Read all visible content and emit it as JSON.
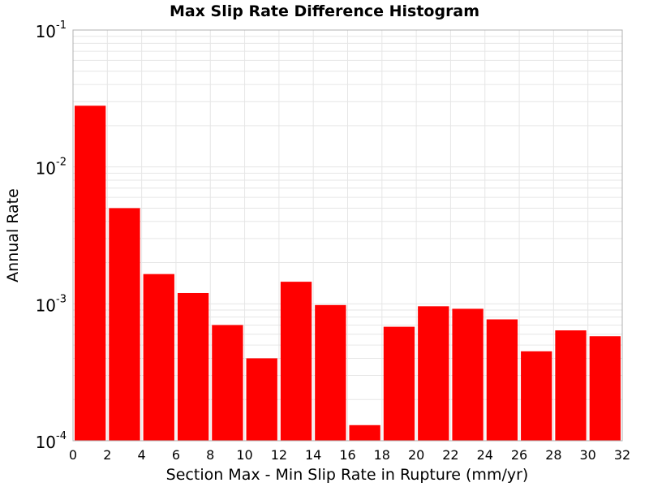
{
  "chart_data": {
    "type": "bar",
    "title": "Max Slip Rate Difference Histogram",
    "xlabel": "Section Max - Min Slip Rate in Rupture (mm/yr)",
    "ylabel": "Annual Rate",
    "y_scale": "log",
    "xlim": [
      0,
      32
    ],
    "ylim": [
      0.0001,
      0.1
    ],
    "x_ticks": [
      0,
      2,
      4,
      6,
      8,
      10,
      12,
      14,
      16,
      18,
      20,
      22,
      24,
      26,
      28,
      30,
      32
    ],
    "x_tick_labels": [
      "0",
      "2",
      "4",
      "6",
      "8",
      "10",
      "12",
      "14",
      "16",
      "18",
      "20",
      "22",
      "24",
      "26",
      "28",
      "30",
      "32"
    ],
    "y_ticks": [
      {
        "value": 0.1,
        "base": "10",
        "exp": "-1"
      },
      {
        "value": 0.01,
        "base": "10",
        "exp": "-2"
      },
      {
        "value": 0.001,
        "base": "10",
        "exp": "-3"
      },
      {
        "value": 0.0001,
        "base": "10",
        "exp": "-4"
      }
    ],
    "bin_width": 2,
    "bin_centers": [
      1,
      3,
      5,
      7,
      9,
      11,
      13,
      15,
      17,
      19,
      21,
      23,
      25,
      27,
      29,
      31
    ],
    "values": [
      0.028,
      0.005,
      0.00165,
      0.0012,
      0.0007,
      0.0004,
      0.00145,
      0.00098,
      0.00013,
      0.00068,
      0.00096,
      0.00092,
      0.00077,
      0.00045,
      0.00064,
      0.00058
    ],
    "bar_color": "#ff0000",
    "grid": true,
    "grid_color": "#e6e6e6",
    "frame_color": "#b0b0b0"
  }
}
